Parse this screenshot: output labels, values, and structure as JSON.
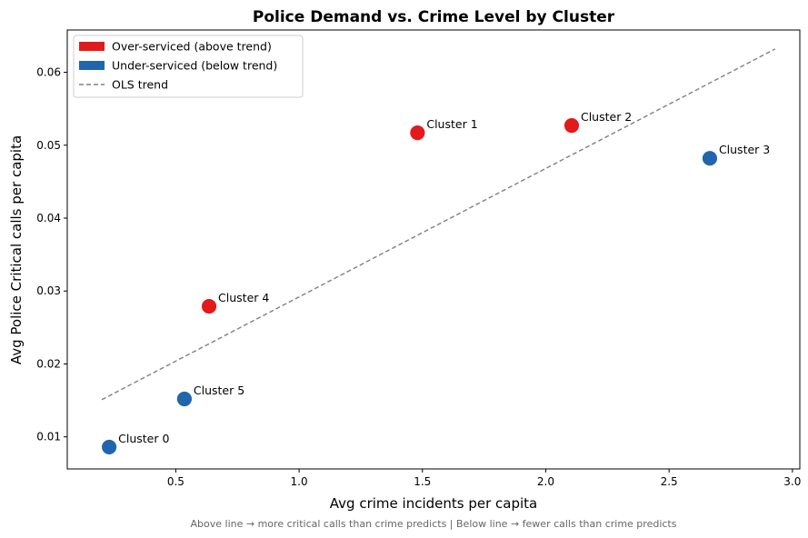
{
  "chart_data": {
    "type": "scatter",
    "title": "Police Demand vs. Crime Level by Cluster",
    "xlabel": "Avg crime incidents per capita",
    "ylabel": "Avg Police Critical calls per capita",
    "footnote": "Above line → more critical calls than crime predicts  |  Below line → fewer calls than crime predicts",
    "xlim": [
      0.06,
      3.03
    ],
    "ylim": [
      0.0056,
      0.0658
    ],
    "x_ticks": [
      0.5,
      1.0,
      1.5,
      2.0,
      2.5,
      3.0
    ],
    "x_tick_labels": [
      "0.5",
      "1.0",
      "1.5",
      "2.0",
      "2.5",
      "3.0"
    ],
    "y_ticks": [
      0.01,
      0.02,
      0.03,
      0.04,
      0.05,
      0.06
    ],
    "y_tick_labels": [
      "0.01",
      "0.02",
      "0.03",
      "0.04",
      "0.05",
      "0.06"
    ],
    "grid": false,
    "legend_position": "top-left",
    "colors": {
      "over": "#e31a1c",
      "under": "#2166ac",
      "trend": "#808080"
    },
    "legend": [
      {
        "label": "Over-serviced (above trend)",
        "kind": "patch",
        "color": "#e31a1c"
      },
      {
        "label": "Under-serviced (below trend)",
        "kind": "patch",
        "color": "#2166ac"
      },
      {
        "label": "OLS trend",
        "kind": "dashed-line",
        "color": "#808080"
      }
    ],
    "points": [
      {
        "label": "Cluster 0",
        "x": 0.23,
        "y": 0.0086,
        "group": "under"
      },
      {
        "label": "Cluster 1",
        "x": 1.48,
        "y": 0.0517,
        "group": "over"
      },
      {
        "label": "Cluster 2",
        "x": 2.105,
        "y": 0.0527,
        "group": "over"
      },
      {
        "label": "Cluster 3",
        "x": 2.665,
        "y": 0.0482,
        "group": "under"
      },
      {
        "label": "Cluster 4",
        "x": 0.635,
        "y": 0.0279,
        "group": "over"
      },
      {
        "label": "Cluster 5",
        "x": 0.535,
        "y": 0.0152,
        "group": "under"
      }
    ],
    "trend_line": {
      "x": [
        0.2,
        2.93
      ],
      "y": [
        0.0151,
        0.0632
      ]
    }
  }
}
